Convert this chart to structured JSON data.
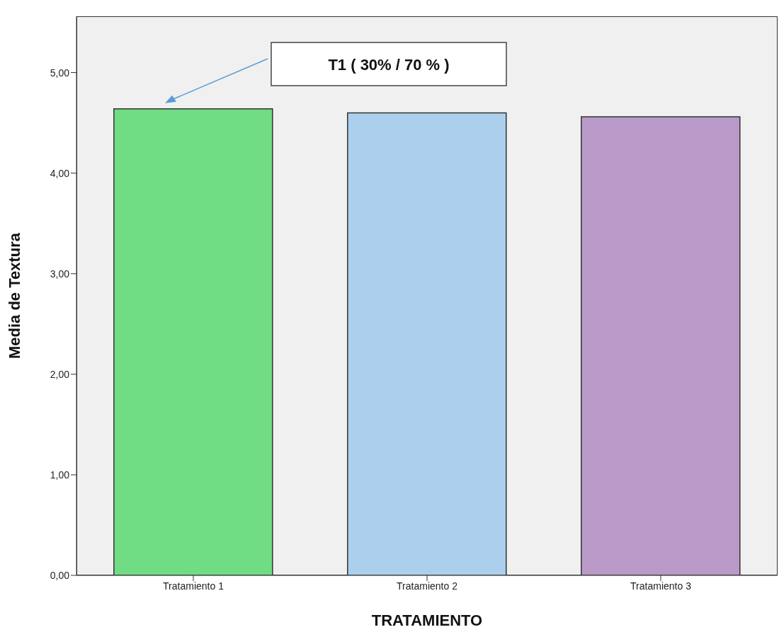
{
  "chart_data": {
    "type": "bar",
    "xlabel": "TRATAMIENTO",
    "ylabel": "Media de Textura",
    "categories": [
      "Tratamiento 1",
      "Tratamiento 2",
      "Tratamiento 3"
    ],
    "values": [
      4.64,
      4.6,
      4.56
    ],
    "colors": [
      "#70dc84",
      "#abcfec",
      "#b899c8"
    ],
    "ylim": [
      0,
      5.56
    ],
    "yticks": [
      {
        "value": 0,
        "label": "0,00"
      },
      {
        "value": 1,
        "label": "1,00"
      },
      {
        "value": 2,
        "label": "2,00"
      },
      {
        "value": 3,
        "label": "3,00"
      },
      {
        "value": 4,
        "label": "4,00"
      },
      {
        "value": 5,
        "label": "5,00"
      }
    ],
    "annotations": [
      "T1 ( 30% / 70 % )"
    ],
    "grid": false,
    "legend": false
  }
}
